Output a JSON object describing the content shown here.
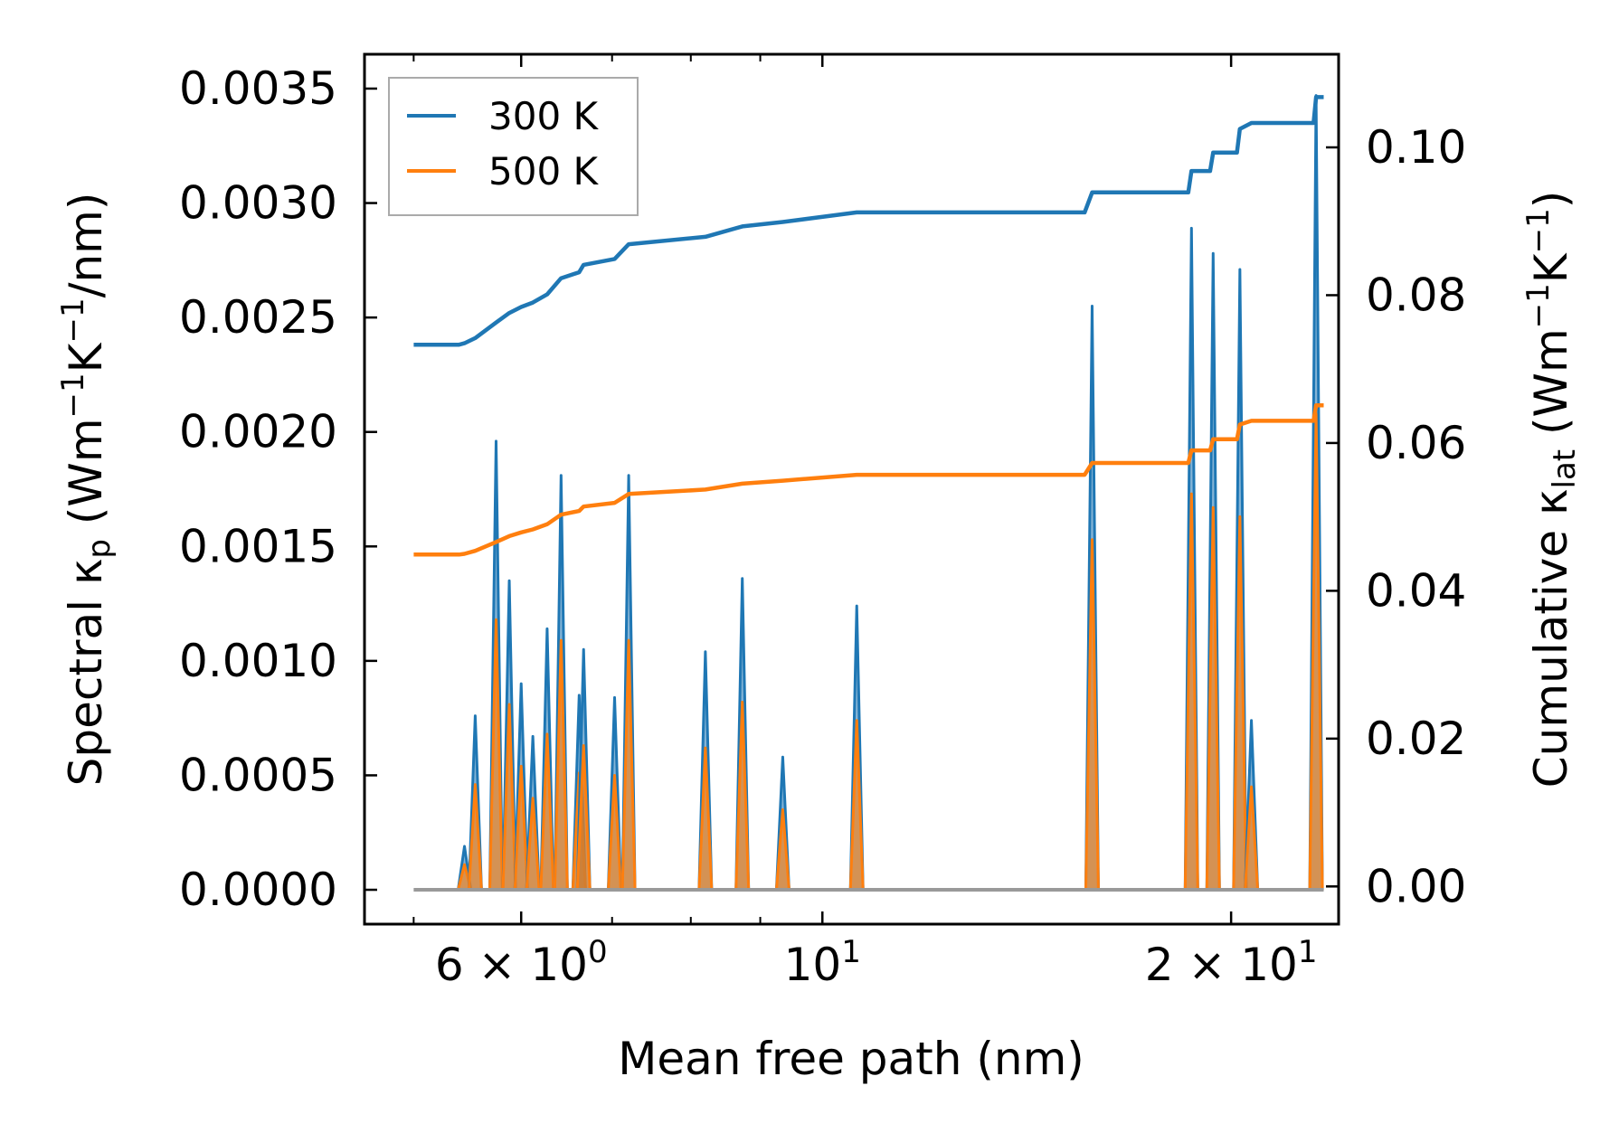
{
  "chart_data": {
    "type": "line",
    "xscale": "log",
    "xlabel": "Mean free path (nm)",
    "xlim": [
      4.6,
      24.0
    ],
    "x_ticks": [
      {
        "value": 6,
        "base": "6 × 10",
        "exp": "0"
      },
      {
        "value": 10,
        "base": "10",
        "exp": "1"
      },
      {
        "value": 20,
        "base": "2 × 10",
        "exp": "1"
      }
    ],
    "ylabel_left": {
      "pre": "Spectral κ",
      "sub": "p",
      "mid": " (Wm",
      "sup1": "−1",
      "mid2": "K",
      "sup2": "−1",
      "post": "/nm)"
    },
    "ylim_left": [
      -0.00015,
      0.00365
    ],
    "y_ticks_left": [
      "0.0000",
      "0.0005",
      "0.0010",
      "0.0015",
      "0.0020",
      "0.0025",
      "0.0030",
      "0.0035"
    ],
    "ylabel_right": {
      "pre": "Cumulative κ",
      "sub": "lat",
      "mid": " (Wm",
      "sup1": "−1",
      "mid2": "K",
      "sup2": "−1",
      "post": ")"
    },
    "ylim_right": [
      -0.0051,
      0.1126
    ],
    "y_ticks_right": [
      "0.00",
      "0.02",
      "0.04",
      "0.06",
      "0.08",
      "0.10"
    ],
    "legend": {
      "position": "top-left",
      "entries": [
        "300 K",
        "500 K"
      ]
    },
    "colors": {
      "s300": "#1f77b4",
      "s500": "#ff7f0e",
      "baseline": "#999999"
    },
    "spikes": [
      {
        "x": 5.45,
        "y300": 0.00019,
        "y500": 0.00011
      },
      {
        "x": 5.55,
        "y300": 0.00076,
        "y500": 0.00046
      },
      {
        "x": 5.75,
        "y300": 0.00196,
        "y500": 0.00118
      },
      {
        "x": 5.88,
        "y300": 0.00135,
        "y500": 0.00081
      },
      {
        "x": 6.0,
        "y300": 0.0009,
        "y500": 0.00054
      },
      {
        "x": 6.12,
        "y300": 0.00067,
        "y500": 0.0004
      },
      {
        "x": 6.27,
        "y300": 0.00114,
        "y500": 0.00068
      },
      {
        "x": 6.42,
        "y300": 0.00181,
        "y500": 0.00109
      },
      {
        "x": 6.62,
        "y300": 0.00085,
        "y500": 0.00051
      },
      {
        "x": 6.67,
        "y300": 0.00105,
        "y500": 0.00063
      },
      {
        "x": 7.03,
        "y300": 0.00084,
        "y500": 0.0005
      },
      {
        "x": 7.2,
        "y300": 0.00181,
        "y500": 0.00109
      },
      {
        "x": 8.2,
        "y300": 0.00104,
        "y500": 0.00062
      },
      {
        "x": 8.73,
        "y300": 0.00136,
        "y500": 0.00082
      },
      {
        "x": 9.35,
        "y300": 0.00058,
        "y500": 0.00035
      },
      {
        "x": 10.6,
        "y300": 0.00124,
        "y500": 0.00074
      },
      {
        "x": 15.8,
        "y300": 0.00255,
        "y500": 0.00153
      },
      {
        "x": 18.7,
        "y300": 0.00289,
        "y500": 0.00173
      },
      {
        "x": 19.4,
        "y300": 0.00278,
        "y500": 0.00167
      },
      {
        "x": 20.3,
        "y300": 0.00271,
        "y500": 0.00163
      },
      {
        "x": 20.7,
        "y300": 0.00074,
        "y500": 0.00045
      },
      {
        "x": 23.1,
        "y300": 0.00347,
        "y500": 0.00208
      }
    ],
    "series": [
      {
        "name": "300 K",
        "points": [
          [
            5.0,
            0.0733
          ],
          [
            5.4,
            0.0733
          ],
          [
            5.45,
            0.0735
          ],
          [
            5.55,
            0.0742
          ],
          [
            5.75,
            0.0763
          ],
          [
            5.88,
            0.0776
          ],
          [
            6.0,
            0.0784
          ],
          [
            6.12,
            0.079
          ],
          [
            6.27,
            0.0801
          ],
          [
            6.42,
            0.0823
          ],
          [
            6.62,
            0.0831
          ],
          [
            6.67,
            0.0841
          ],
          [
            7.03,
            0.0849
          ],
          [
            7.2,
            0.0869
          ],
          [
            8.2,
            0.0879
          ],
          [
            8.73,
            0.0893
          ],
          [
            9.35,
            0.0899
          ],
          [
            10.6,
            0.0912
          ],
          [
            15.6,
            0.0912
          ],
          [
            15.8,
            0.0939
          ],
          [
            18.6,
            0.0939
          ],
          [
            18.7,
            0.0968
          ],
          [
            19.3,
            0.0968
          ],
          [
            19.4,
            0.0993
          ],
          [
            20.2,
            0.0993
          ],
          [
            20.3,
            0.1025
          ],
          [
            20.7,
            0.1033
          ],
          [
            23.0,
            0.1033
          ],
          [
            23.1,
            0.1068
          ],
          [
            23.4,
            0.1068
          ]
        ]
      },
      {
        "name": "500 K",
        "points": [
          [
            5.0,
            0.0449
          ],
          [
            5.4,
            0.0449
          ],
          [
            5.45,
            0.045
          ],
          [
            5.55,
            0.0454
          ],
          [
            5.75,
            0.0466
          ],
          [
            5.88,
            0.0474
          ],
          [
            6.0,
            0.0479
          ],
          [
            6.12,
            0.0483
          ],
          [
            6.27,
            0.049
          ],
          [
            6.42,
            0.0503
          ],
          [
            6.62,
            0.0508
          ],
          [
            6.67,
            0.0514
          ],
          [
            7.03,
            0.0519
          ],
          [
            7.2,
            0.0531
          ],
          [
            8.2,
            0.0537
          ],
          [
            8.73,
            0.0545
          ],
          [
            9.35,
            0.0549
          ],
          [
            10.6,
            0.0557
          ],
          [
            15.6,
            0.0557
          ],
          [
            15.8,
            0.0573
          ],
          [
            18.6,
            0.0573
          ],
          [
            18.7,
            0.059
          ],
          [
            19.3,
            0.059
          ],
          [
            19.4,
            0.0605
          ],
          [
            20.2,
            0.0605
          ],
          [
            20.3,
            0.0625
          ],
          [
            20.7,
            0.063
          ],
          [
            23.0,
            0.063
          ],
          [
            23.1,
            0.0651
          ],
          [
            23.4,
            0.0651
          ]
        ]
      }
    ]
  }
}
